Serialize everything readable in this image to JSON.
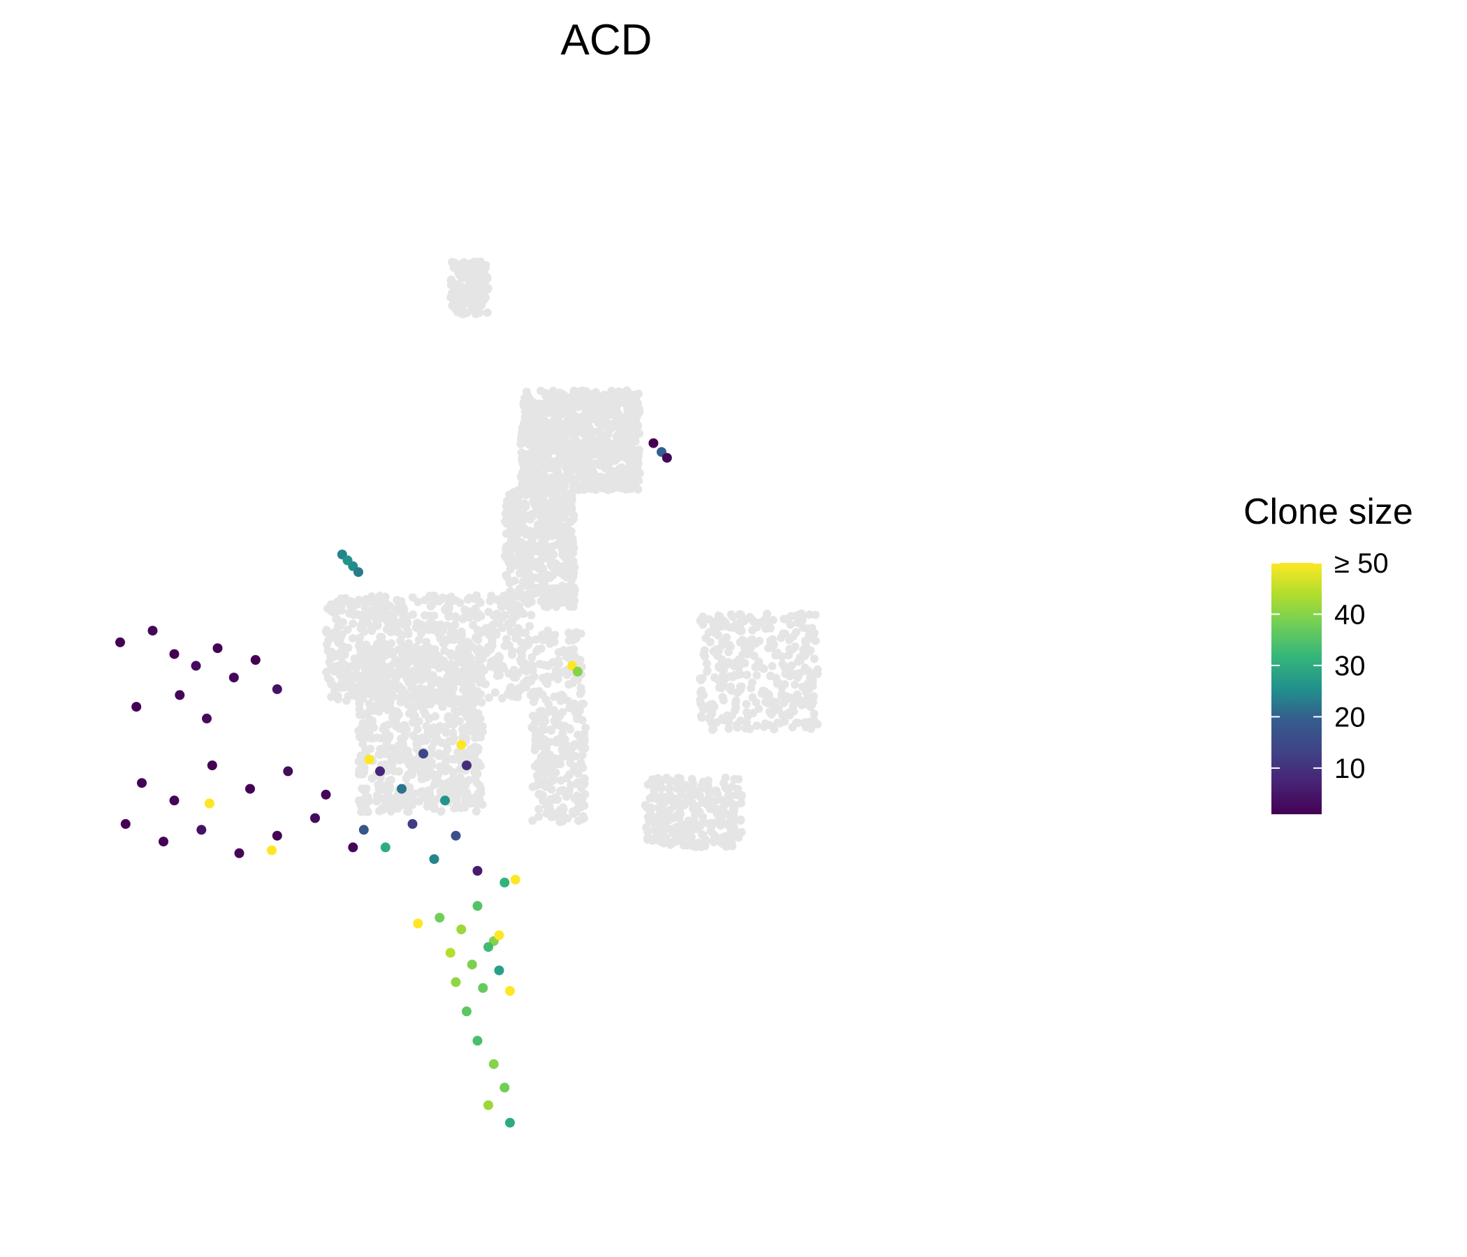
{
  "chart_data": {
    "type": "scatter",
    "title": "ACD",
    "xlabel": "",
    "ylabel": "",
    "grid": false,
    "axes_visible": false,
    "background_point_color": "#e5e5e5",
    "legend": {
      "title": "Clone size",
      "position": "right",
      "colorscale": "viridis",
      "range": [
        1,
        50
      ],
      "ticks": [
        {
          "value": 10,
          "label": "10"
        },
        {
          "value": 20,
          "label": "20"
        },
        {
          "value": 30,
          "label": "30"
        },
        {
          "value": 40,
          "label": "40"
        },
        {
          "value": 50,
          "label": "≥ 50"
        }
      ]
    },
    "background_clusters": [
      {
        "x": [
          -6.2,
          -4.8
        ],
        "y": [
          7.8,
          9.6
        ],
        "count": 160
      },
      {
        "x": [
          -3.6,
          0.8
        ],
        "y": [
          1.8,
          5.2
        ],
        "count": 900
      },
      {
        "x": [
          -4.2,
          -1.6
        ],
        "y": [
          -2.2,
          1.8
        ],
        "count": 420
      },
      {
        "x": [
          -10.8,
          -3.2
        ],
        "y": [
          -5.4,
          -1.8
        ],
        "count": 600
      },
      {
        "x": [
          -9.6,
          -5.0
        ],
        "y": [
          -9.2,
          -3.6
        ],
        "count": 700
      },
      {
        "x": [
          3.0,
          7.4
        ],
        "y": [
          -6.4,
          -2.4
        ],
        "count": 320
      },
      {
        "x": [
          1.0,
          4.6
        ],
        "y": [
          -10.4,
          -8.0
        ],
        "count": 260
      },
      {
        "x": [
          -3.2,
          -1.2
        ],
        "y": [
          -9.6,
          -3.0
        ],
        "count": 300
      }
    ],
    "series": [
      {
        "name": "",
        "x": [
          -18.4,
          -17.2,
          -16.4,
          -15.6,
          -14.8,
          -14.2,
          -13.4,
          -12.6,
          -17.8,
          -16.2,
          -15.2
        ],
        "y": [
          -3.4,
          -3.0,
          -3.8,
          -4.2,
          -3.6,
          -4.6,
          -4.0,
          -5.0,
          -5.6,
          -5.2,
          -6.0
        ],
        "size": [
          1,
          2,
          1,
          3,
          1,
          2,
          1,
          4,
          1,
          2,
          3
        ]
      },
      {
        "name": "",
        "x": [
          -17.6,
          -16.4,
          -15.0,
          -13.6,
          -12.2,
          -10.8,
          -18.2,
          -16.8,
          -15.4,
          -14.0,
          -12.6,
          -11.2,
          -9.8
        ],
        "y": [
          -8.2,
          -8.8,
          -7.6,
          -8.4,
          -7.8,
          -8.6,
          -9.6,
          -10.2,
          -9.8,
          -10.6,
          -10.0,
          -9.4,
          -10.4
        ],
        "size": [
          1,
          2,
          1,
          1,
          3,
          2,
          1,
          1,
          4,
          2,
          1,
          3,
          2
        ]
      },
      {
        "name": "",
        "x": [
          -15.1,
          -12.8
        ],
        "y": [
          -8.9,
          -10.5
        ],
        "size": [
          50,
          50
        ]
      },
      {
        "name": "",
        "x": [
          -8.8,
          -8.0,
          -7.2,
          -6.4,
          -5.6,
          -9.4,
          -8.6,
          -7.6,
          -6.8,
          -6.0,
          -5.2
        ],
        "y": [
          -7.8,
          -8.4,
          -7.2,
          -8.8,
          -7.6,
          -9.8,
          -10.4,
          -9.6,
          -10.8,
          -10.0,
          -11.2
        ],
        "size": [
          8,
          22,
          14,
          26,
          9,
          18,
          30,
          12,
          24,
          16,
          6
        ]
      },
      {
        "name": "",
        "x": [
          -9.2,
          -5.8,
          -7.4
        ],
        "y": [
          -7.4,
          -6.9,
          -13.0
        ],
        "size": [
          50,
          50,
          50
        ]
      },
      {
        "name": "",
        "x": [
          -6.6,
          -5.8,
          -5.2,
          -4.6,
          -6.2,
          -5.4,
          -4.8,
          -6.0,
          -5.0,
          -4.4,
          -5.6,
          -4.2
        ],
        "y": [
          -12.8,
          -13.2,
          -12.4,
          -13.6,
          -14.0,
          -14.4,
          -13.8,
          -15.0,
          -15.2,
          -14.6,
          -16.0,
          -11.6
        ],
        "size": [
          38,
          42,
          35,
          40,
          44,
          39,
          33,
          41,
          37,
          28,
          36,
          31
        ]
      },
      {
        "name": "",
        "x": [
          -4.4,
          -4.0,
          -3.8
        ],
        "y": [
          -13.4,
          -15.3,
          -11.5
        ],
        "size": [
          50,
          50,
          50
        ]
      },
      {
        "name": "",
        "x": [
          -5.2,
          -4.6,
          -4.2,
          -4.8,
          -4.0
        ],
        "y": [
          -17.0,
          -17.8,
          -18.6,
          -19.2,
          -19.8
        ],
        "size": [
          34,
          40,
          38,
          42,
          30
        ]
      },
      {
        "name": "",
        "x": [
          -10.2,
          -10.0,
          -9.8,
          -9.6
        ],
        "y": [
          -0.4,
          -0.6,
          -0.8,
          -1.0
        ],
        "size": [
          24,
          26,
          25,
          23
        ]
      },
      {
        "name": "",
        "x": [
          -1.7,
          -1.5
        ],
        "y": [
          -4.2,
          -4.4
        ],
        "size": [
          50,
          40
        ]
      },
      {
        "name": "",
        "x": [
          1.3,
          1.6,
          1.8
        ],
        "y": [
          3.4,
          3.1,
          2.9
        ],
        "size": [
          1,
          20,
          2
        ]
      }
    ]
  }
}
